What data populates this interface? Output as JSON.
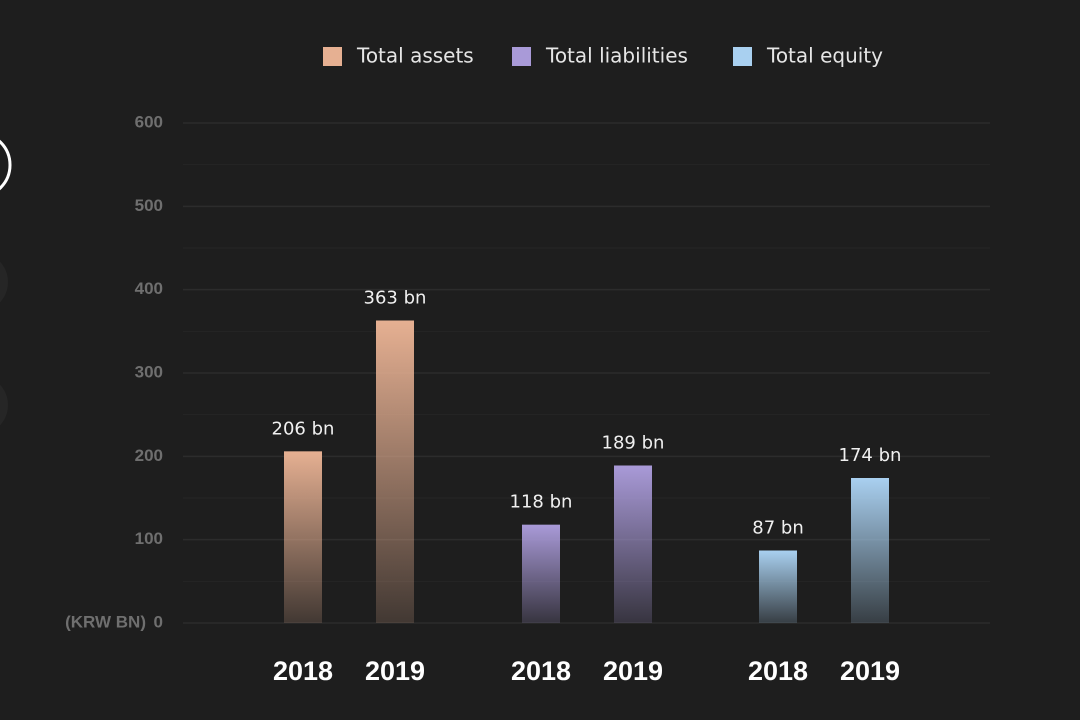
{
  "chart_data": {
    "type": "bar",
    "categories": [
      "2018",
      "2019"
    ],
    "series": [
      {
        "name": "Total assets",
        "color": "#e6b092",
        "values": [
          206,
          363
        ],
        "value_labels": [
          "206 bn",
          "363 bn"
        ]
      },
      {
        "name": "Total liabilities",
        "color": "#a99ad8",
        "values": [
          118,
          189
        ],
        "value_labels": [
          "118 bn",
          "189 bn"
        ]
      },
      {
        "name": "Total equity",
        "color": "#a9d0f0",
        "values": [
          87,
          174
        ],
        "value_labels": [
          "87 bn",
          "174 bn"
        ]
      }
    ],
    "y_unit_label": "(KRW BN)",
    "ylim": [
      0,
      600
    ],
    "yticks": [
      0,
      100,
      200,
      300,
      400,
      500,
      600
    ],
    "minor_yticks": [
      50,
      150,
      250,
      350,
      450,
      550
    ],
    "grid": true,
    "legend": "top"
  }
}
